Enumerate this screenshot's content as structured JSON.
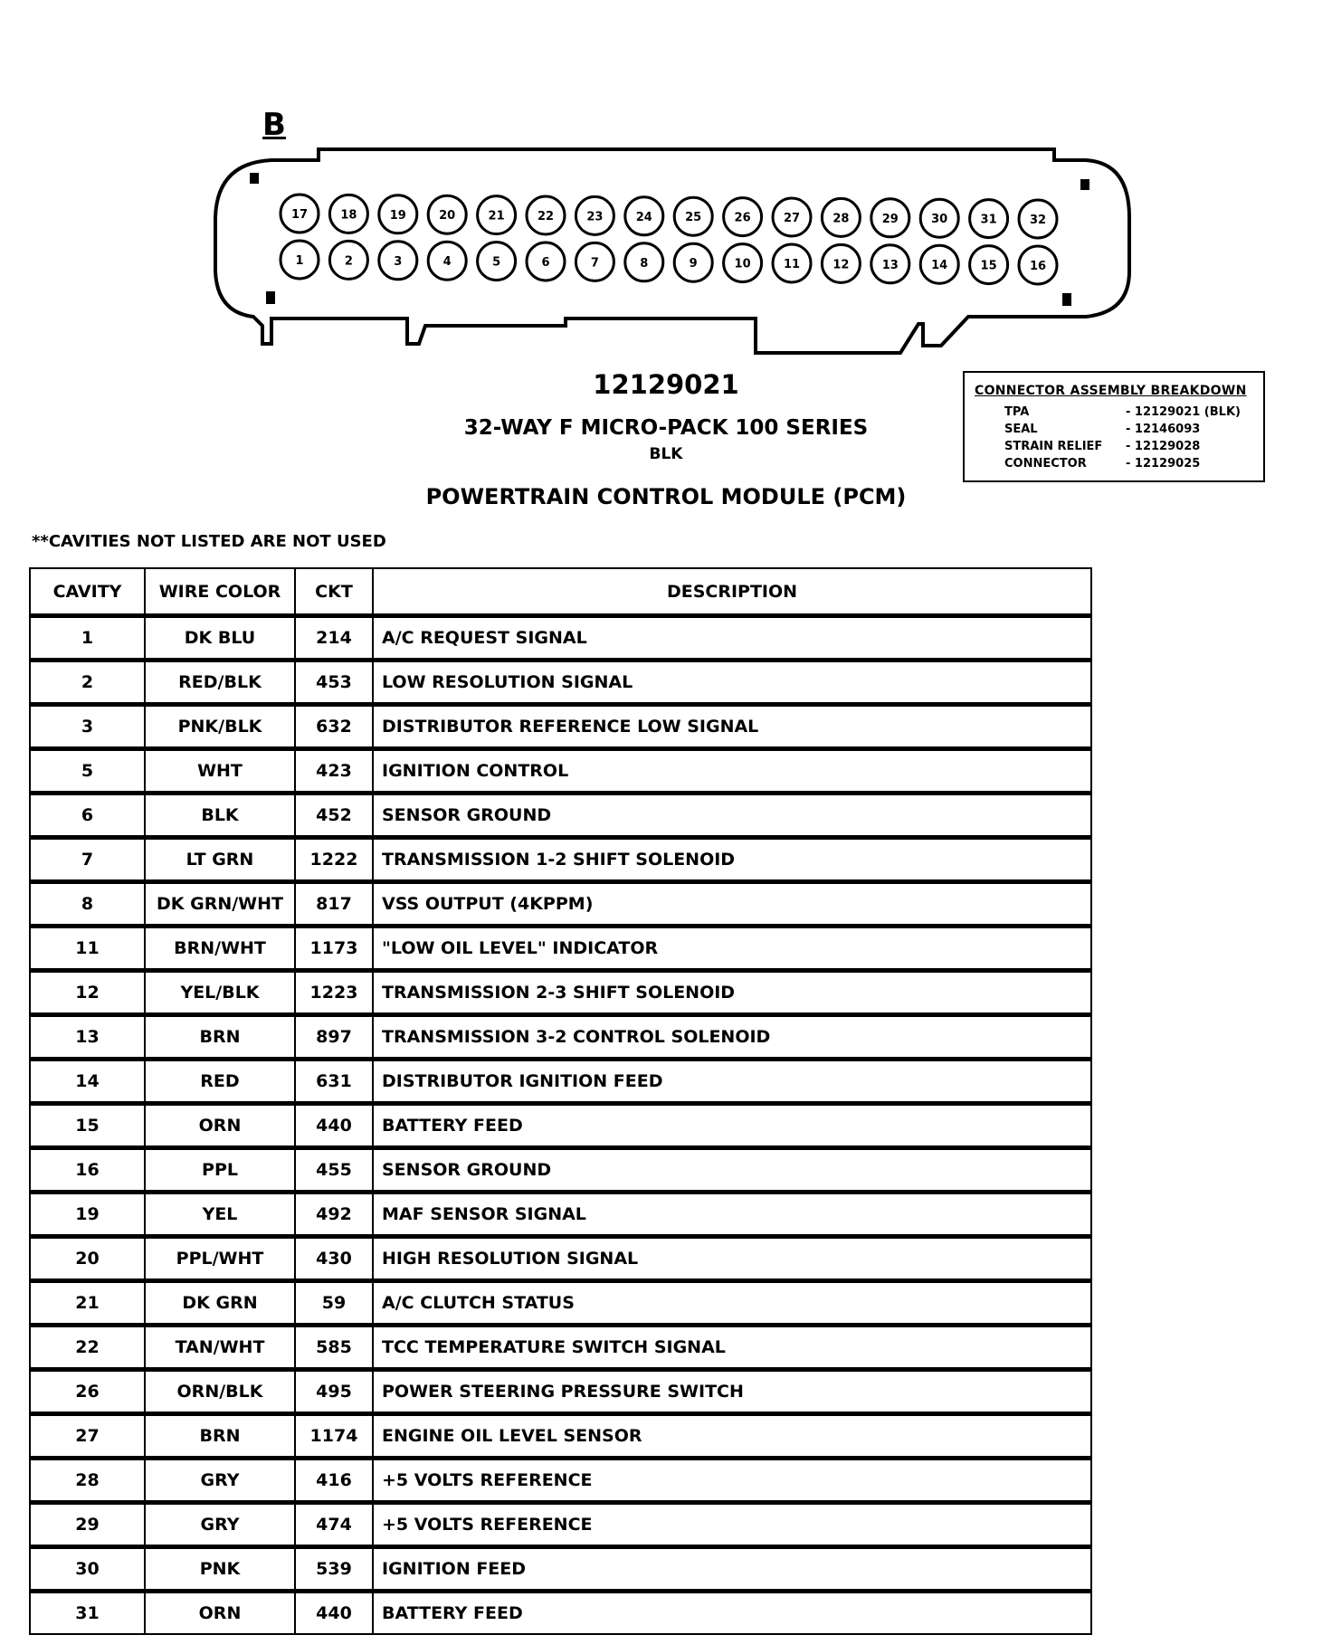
{
  "connector": {
    "label": "B",
    "top_row_pins": [
      "17",
      "18",
      "19",
      "20",
      "21",
      "22",
      "23",
      "24",
      "25",
      "26",
      "27",
      "28",
      "29",
      "30",
      "31",
      "32"
    ],
    "bottom_row_pins": [
      "1",
      "2",
      "3",
      "4",
      "5",
      "6",
      "7",
      "8",
      "9",
      "10",
      "11",
      "12",
      "13",
      "14",
      "15",
      "16"
    ]
  },
  "part_number": "12129021",
  "connector_type": "32-WAY F MICRO-PACK 100 SERIES",
  "connector_color": "BLK",
  "module_name": "POWERTRAIN CONTROL MODULE (PCM)",
  "breakdown": {
    "title": "CONNECTOR ASSEMBLY BREAKDOWN",
    "items": [
      {
        "name": "TPA",
        "value": "-  12129021 (BLK)"
      },
      {
        "name": "SEAL",
        "value": "-  12146093"
      },
      {
        "name": "STRAIN RELIEF",
        "value": "-  12129028"
      },
      {
        "name": "CONNECTOR",
        "value": "-  12129025"
      }
    ]
  },
  "note": "**CAVITIES NOT LISTED ARE NOT USED",
  "table": {
    "headers": [
      "CAVITY",
      "WIRE COLOR",
      "CKT",
      "DESCRIPTION"
    ],
    "rows": [
      [
        "1",
        "DK BLU",
        "214",
        "A/C REQUEST SIGNAL"
      ],
      [
        "2",
        "RED/BLK",
        "453",
        "LOW RESOLUTION SIGNAL"
      ],
      [
        "3",
        "PNK/BLK",
        "632",
        "DISTRIBUTOR REFERENCE LOW SIGNAL"
      ],
      [
        "5",
        "WHT",
        "423",
        "IGNITION CONTROL"
      ],
      [
        "6",
        "BLK",
        "452",
        "SENSOR GROUND"
      ],
      [
        "7",
        "LT GRN",
        "1222",
        "TRANSMISSION 1-2 SHIFT SOLENOID"
      ],
      [
        "8",
        "DK GRN/WHT",
        "817",
        "VSS OUTPUT (4KPPM)"
      ],
      [
        "11",
        "BRN/WHT",
        "1173",
        "\"LOW OIL LEVEL\" INDICATOR"
      ],
      [
        "12",
        "YEL/BLK",
        "1223",
        "TRANSMISSION 2-3 SHIFT SOLENOID"
      ],
      [
        "13",
        "BRN",
        "897",
        "TRANSMISSION 3-2 CONTROL SOLENOID"
      ],
      [
        "14",
        "RED",
        "631",
        "DISTRIBUTOR IGNITION FEED"
      ],
      [
        "15",
        "ORN",
        "440",
        "BATTERY FEED"
      ],
      [
        "16",
        "PPL",
        "455",
        "SENSOR GROUND"
      ],
      [
        "19",
        "YEL",
        "492",
        "MAF SENSOR SIGNAL"
      ],
      [
        "20",
        "PPL/WHT",
        "430",
        "HIGH RESOLUTION SIGNAL"
      ],
      [
        "21",
        "DK GRN",
        "59",
        "A/C CLUTCH STATUS"
      ],
      [
        "22",
        "TAN/WHT",
        "585",
        "TCC TEMPERATURE SWITCH SIGNAL"
      ],
      [
        "26",
        "ORN/BLK",
        "495",
        "POWER STEERING PRESSURE SWITCH"
      ],
      [
        "27",
        "BRN",
        "1174",
        "ENGINE OIL LEVEL SENSOR"
      ],
      [
        "28",
        "GRY",
        "416",
        "+5 VOLTS REFERENCE"
      ],
      [
        "29",
        "GRY",
        "474",
        "+5 VOLTS REFERENCE"
      ],
      [
        "30",
        "PNK",
        "539",
        "IGNITION FEED"
      ],
      [
        "31",
        "ORN",
        "440",
        "BATTERY FEED"
      ]
    ]
  }
}
